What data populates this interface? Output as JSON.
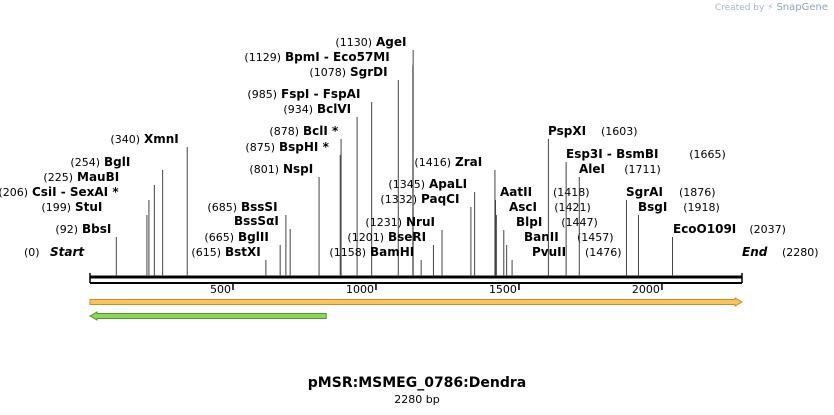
{
  "credit": {
    "prefix": "Created by",
    "brand": "SnapGene"
  },
  "title": "pMSR:MSMEG_0786:Dendra",
  "subtitle": "2280 bp",
  "length": 2280,
  "axis_ticks": [
    "500",
    "1000",
    "1500",
    "2000"
  ],
  "ends": {
    "start_label": "Start",
    "start_pos": "(0)",
    "end_label": "End",
    "end_pos": "(2280)"
  },
  "sites": [
    {
      "name": "BbsI",
      "pos": "(92)"
    },
    {
      "name": "StuI",
      "pos": "(199)"
    },
    {
      "name": "CsiI  - SexAI *",
      "pos": "(206)"
    },
    {
      "name": "MauBI",
      "pos": "(225)"
    },
    {
      "name": "BglI",
      "pos": "(254)"
    },
    {
      "name": "XmnI",
      "pos": "(340)"
    },
    {
      "name": "BstXI",
      "pos": "(615)"
    },
    {
      "name": "BglII",
      "pos": "(665)"
    },
    {
      "name": "BssSαI",
      "pos": ""
    },
    {
      "name": "BssSI",
      "pos": "(685)"
    },
    {
      "name": "NspI",
      "pos": "(801)"
    },
    {
      "name": "BspHI *",
      "pos": "(875)"
    },
    {
      "name": "BclI *",
      "pos": "(878)"
    },
    {
      "name": "BclVI",
      "pos": "(934)"
    },
    {
      "name": "FspI  - FspAI",
      "pos": "(985)"
    },
    {
      "name": "SgrDI",
      "pos": "(1078)"
    },
    {
      "name": "BpmI  - Eco57MI",
      "pos": "(1129)"
    },
    {
      "name": "AgeI",
      "pos": "(1130)"
    },
    {
      "name": "BamHI",
      "pos": "(1158)"
    },
    {
      "name": "BseRI",
      "pos": "(1201)"
    },
    {
      "name": "NruI",
      "pos": "(1231)"
    },
    {
      "name": "PaqCI",
      "pos": "(1332)"
    },
    {
      "name": "ApaLI",
      "pos": "(1345)"
    },
    {
      "name": "ZraI",
      "pos": "(1416)"
    },
    {
      "name": "AatII",
      "pos": "(1418)"
    },
    {
      "name": "AscI",
      "pos": "(1421)"
    },
    {
      "name": "BlpI",
      "pos": "(1447)"
    },
    {
      "name": "BanII",
      "pos": "(1457)"
    },
    {
      "name": "PvuII",
      "pos": "(1476)"
    },
    {
      "name": "PspXI",
      "pos": "(1603)"
    },
    {
      "name": "Esp3I  - BsmBI",
      "pos": "(1665)"
    },
    {
      "name": "AleI",
      "pos": "(1711)"
    },
    {
      "name": "SgrAI",
      "pos": "(1876)"
    },
    {
      "name": "BsgI",
      "pos": "(1918)"
    },
    {
      "name": "EcoO109I",
      "pos": "(2037)"
    }
  ],
  "features": [
    {
      "name": "forward-feature",
      "start": 0,
      "end": 2280,
      "direction": "forward",
      "fill": "#f5c463",
      "stroke": "#d08a2a"
    },
    {
      "name": "reverse-feature",
      "start": 0,
      "end": 826,
      "direction": "reverse",
      "fill": "#8cd45f",
      "stroke": "#4d9a2b"
    }
  ]
}
